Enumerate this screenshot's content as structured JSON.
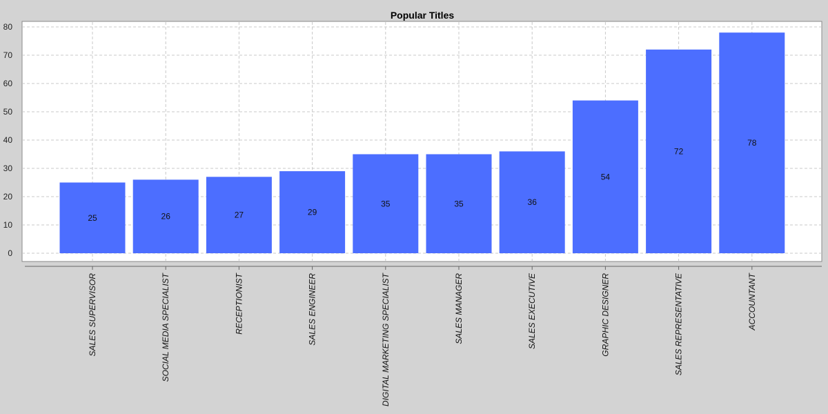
{
  "chart_data": {
    "type": "bar",
    "title": "Popular Titles",
    "xlabel": "",
    "ylabel": "",
    "categories": [
      "SALES SUPERVISOR",
      "SOCIAL MEDIA SPECIALIST",
      "RECEPTIONIST",
      "SALES ENGINEER",
      "DIGITAL MARKETING SPECIALIST",
      "SALES MANAGER",
      "SALES EXECUTIVE",
      "GRAPHIC DESIGNER",
      "SALES REPRESENTATIVE",
      "ACCOUNTANT"
    ],
    "values": [
      25,
      26,
      27,
      29,
      35,
      35,
      36,
      54,
      72,
      78
    ],
    "ylim": [
      0,
      80
    ],
    "yticks": [
      0,
      10,
      20,
      30,
      40,
      50,
      60,
      70,
      80
    ],
    "grid": true,
    "legend": "none",
    "colors": {
      "bar": "#4c6eff",
      "background": "#d3d3d3",
      "plot": "#ffffff"
    }
  }
}
